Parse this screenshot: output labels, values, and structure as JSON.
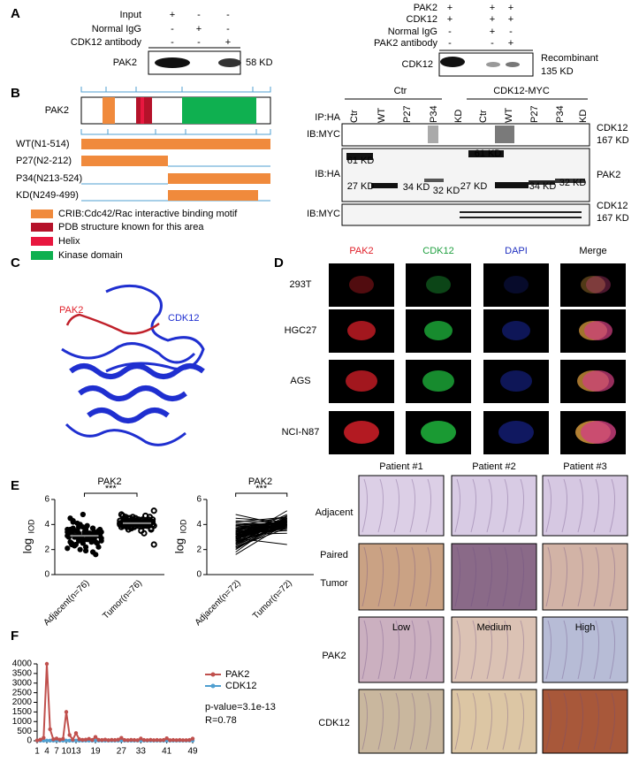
{
  "panels": {
    "a": {
      "label": "A",
      "left": {
        "conditions": [
          {
            "name": "Input",
            "marks": [
              "+",
              "-",
              "-"
            ]
          },
          {
            "name": "Normal IgG",
            "marks": [
              "-",
              "+",
              "-"
            ]
          },
          {
            "name": "CDK12 antibody",
            "marks": [
              "-",
              "-",
              "+"
            ]
          }
        ],
        "blot": "PAK2",
        "size": "58 KD"
      },
      "right": {
        "conditions": [
          {
            "name": "PAK2",
            "marks": [
              "+",
              "+",
              "+"
            ]
          },
          {
            "name": "CDK12",
            "marks": [
              "+",
              "+",
              "+"
            ]
          },
          {
            "name": "Normal IgG",
            "marks": [
              "-",
              "+",
              "-"
            ]
          },
          {
            "name": "PAK2 antibody",
            "marks": [
              "-",
              "-",
              "+"
            ]
          }
        ],
        "blot": "CDK12",
        "note": [
          "Recombinant",
          "135 KD"
        ]
      }
    },
    "b": {
      "label": "B",
      "protein": "PAK2",
      "constructs": [
        "WT(N1-514)",
        "P27(N2-212)",
        "P34(N213-524)",
        "KD(N249-499)"
      ],
      "legend": [
        "CRIB:Cdc42/Rac interactive binding motif",
        "PDB structure known for this area",
        "Helix",
        "Kinase domain"
      ],
      "blot": {
        "groups": [
          "Ctr",
          "CDK12-MYC"
        ],
        "lanes": [
          "Ctr",
          "WT",
          "P27",
          "P34",
          "KD",
          "Ctr",
          "WT",
          "P27",
          "P34",
          "KD"
        ],
        "rows": [
          "IP:HA",
          "IB:MYC",
          "IB:HA",
          "IB:MYC"
        ],
        "right_labels": [
          [
            "CDK12",
            "167 KD"
          ],
          [
            "PAK2"
          ],
          [
            "CDK12",
            "167 KD"
          ]
        ],
        "bands": [
          "61 KD",
          "27 KD",
          "34 KD",
          "32 KD",
          "61 KD",
          "27 KD",
          "34 KD",
          "32 KD"
        ]
      }
    },
    "c": {
      "label": "C",
      "labels": [
        "PAK2",
        "CDK12"
      ]
    },
    "d": {
      "label": "D",
      "channels": [
        "PAK2",
        "CDK12",
        "DAPI",
        "Merge"
      ],
      "cells": [
        "293T",
        "HGC27",
        "AGS",
        "NCI-N87"
      ]
    },
    "e": {
      "label": "E",
      "ihc": {
        "patients": [
          "Patient #1",
          "Patient #2",
          "Patient #3"
        ],
        "rows": [
          [
            "Adjacent"
          ],
          [
            "Paired",
            "Tumor"
          ],
          [
            "PAK2"
          ],
          [
            "CDK12"
          ]
        ],
        "levels": [
          "Low",
          "Medium",
          "High"
        ]
      }
    },
    "f": {
      "label": "F"
    }
  },
  "chart_data": [
    {
      "type": "scatter",
      "title": "PAK2",
      "significance": "***",
      "ylabel": "log",
      "ylabel_sub": "IOD",
      "color": "#000000",
      "categories": [
        "Adjacent(n=76)",
        "Tumor(n=76)"
      ],
      "ylim": [
        0,
        6
      ],
      "yticks": [
        0,
        2,
        4,
        6
      ],
      "groups": [
        {
          "mean": 3.1,
          "values": [
            3.1,
            2.8,
            3.4,
            2.5,
            3.6,
            3.0,
            2.2,
            3.9,
            3.3,
            2.7,
            3.2,
            4.1,
            2.9,
            3.5,
            1.8,
            3.0,
            2.6,
            3.7,
            3.1,
            2.4,
            3.3,
            4.5,
            2.8,
            3.0,
            3.6,
            2.1,
            3.4,
            2.9,
            3.8,
            3.2,
            2.7,
            3.1,
            4.0,
            2.5,
            3.3,
            1.6,
            3.5,
            2.9,
            3.0,
            3.7,
            2.3,
            3.2,
            4.3,
            2.8,
            3.4,
            3.1,
            2.6,
            3.9,
            3.0,
            2.2,
            3.6,
            3.3,
            2.7,
            4.8,
            3.1,
            2.9,
            3.5,
            2.0,
            3.2,
            3.8,
            2.6,
            3.0,
            3.4,
            2.4,
            3.7,
            3.1,
            2.8,
            4.2,
            3.3,
            2.5,
            3.0,
            3.6,
            2.9,
            3.2,
            1.9,
            3.4
          ]
        },
        {
          "mean": 4.1,
          "values": [
            4.1,
            4.3,
            3.9,
            4.5,
            4.0,
            4.2,
            3.7,
            4.6,
            4.1,
            3.8,
            4.4,
            4.0,
            4.2,
            3.6,
            4.7,
            4.1,
            3.9,
            4.3,
            4.0,
            4.5,
            3.5,
            4.2,
            4.1,
            4.8,
            3.9,
            4.0,
            4.3,
            2.4,
            4.1,
            4.4,
            3.8,
            4.2,
            4.0,
            4.6,
            3.7,
            4.1,
            4.3,
            3.9,
            4.5,
            4.0,
            4.2,
            3.3,
            4.1,
            4.4,
            3.9,
            4.0,
            4.7,
            4.2,
            3.8,
            4.1,
            4.3,
            4.0,
            5.1,
            3.9,
            4.2,
            4.1,
            3.6,
            4.4,
            4.0,
            4.2,
            3.9,
            4.5,
            4.1,
            4.0,
            4.3,
            3.8,
            4.2,
            4.6,
            4.0,
            4.1,
            4.3,
            3.9,
            4.2,
            4.0,
            4.4,
            4.1
          ]
        }
      ]
    },
    {
      "type": "paired",
      "title": "PAK2",
      "significance": "***",
      "ylabel": "log",
      "ylabel_sub": "IOD",
      "color": "#000000",
      "categories": [
        "Adjacent(n=72)",
        "Tumor(n=72)"
      ],
      "ylim": [
        0,
        6
      ],
      "yticks": [
        0,
        2,
        4,
        6
      ],
      "groups": [
        {
          "values": [
            3.1,
            2.8,
            3.4,
            2.5,
            3.6,
            3.0,
            2.2,
            3.9,
            3.3,
            2.7,
            3.2,
            4.1,
            2.9,
            3.5,
            1.8,
            3.0,
            2.6,
            3.7,
            3.1,
            2.4,
            3.3,
            4.5,
            2.8,
            3.0,
            3.6,
            2.1,
            3.4,
            2.9,
            3.8,
            3.2,
            2.7,
            3.1,
            4.0,
            2.5,
            3.3,
            1.6,
            3.5,
            2.9,
            3.0,
            3.7,
            2.3,
            3.2,
            4.3,
            2.8,
            3.4,
            3.1,
            2.6,
            3.9,
            3.0,
            2.2,
            3.6,
            3.3,
            2.7,
            4.8,
            3.1,
            2.9,
            3.5,
            2.0,
            3.2,
            3.8,
            2.6,
            3.0,
            3.4,
            2.4,
            3.7,
            3.1,
            2.8,
            4.2,
            3.3,
            2.5,
            3.0,
            3.6
          ]
        },
        {
          "values": [
            4.1,
            4.3,
            3.9,
            4.5,
            4.0,
            4.2,
            3.7,
            4.6,
            4.1,
            3.8,
            4.4,
            4.0,
            4.2,
            3.6,
            4.7,
            4.1,
            3.9,
            4.3,
            4.0,
            4.5,
            3.5,
            4.2,
            4.1,
            4.8,
            3.9,
            4.0,
            4.3,
            2.4,
            4.1,
            4.4,
            3.8,
            4.2,
            4.0,
            4.6,
            3.7,
            4.1,
            4.3,
            3.9,
            4.5,
            4.0,
            4.2,
            3.3,
            4.1,
            4.4,
            3.9,
            4.0,
            4.7,
            4.2,
            3.8,
            4.1,
            4.3,
            4.0,
            5.1,
            3.9,
            4.2,
            4.1,
            3.6,
            4.4,
            4.0,
            4.2,
            3.9,
            4.5,
            4.1,
            4.0,
            4.3,
            3.8,
            4.2,
            4.6,
            4.0,
            4.1,
            4.3,
            3.9
          ]
        }
      ]
    },
    {
      "type": "line",
      "legend": "right",
      "x": [
        1,
        2,
        3,
        4,
        5,
        6,
        7,
        8,
        9,
        10,
        11,
        12,
        13,
        14,
        15,
        16,
        17,
        18,
        19,
        20,
        21,
        22,
        23,
        24,
        25,
        26,
        27,
        28,
        29,
        30,
        31,
        32,
        33,
        34,
        35,
        36,
        37,
        38,
        39,
        40,
        41,
        42,
        43,
        44,
        45,
        46,
        47,
        48,
        49
      ],
      "xlim": [
        1,
        49
      ],
      "xticks": [
        1,
        4,
        7,
        10,
        13,
        19,
        27,
        33,
        41,
        49
      ],
      "ylim": [
        0,
        4000
      ],
      "yticks": [
        0,
        500,
        1000,
        1500,
        2000,
        2500,
        3000,
        3500,
        4000
      ],
      "annotations": [
        "p-value=3.1e-13",
        "R=0.78"
      ],
      "series": [
        {
          "name": "PAK2",
          "color": "#c0504d",
          "values": [
            20,
            60,
            150,
            4000,
            600,
            80,
            120,
            60,
            100,
            1500,
            300,
            60,
            400,
            80,
            50,
            60,
            100,
            40,
            200,
            50,
            40,
            60,
            30,
            50,
            40,
            60,
            150,
            40,
            30,
            50,
            40,
            30,
            120,
            40,
            30,
            50,
            30,
            40,
            30,
            40,
            130,
            30,
            40,
            30,
            40,
            30,
            30,
            40,
            110
          ]
        },
        {
          "name": "CDK12",
          "color": "#4f9fd0",
          "values": [
            10,
            10,
            10,
            10,
            10,
            10,
            10,
            10,
            10,
            10,
            10,
            10,
            10,
            10,
            10,
            10,
            10,
            10,
            10,
            10,
            10,
            10,
            10,
            10,
            10,
            10,
            10,
            10,
            10,
            10,
            10,
            10,
            10,
            10,
            10,
            10,
            10,
            10,
            10,
            10,
            10,
            10,
            10,
            10,
            10,
            10,
            10,
            10,
            10
          ]
        }
      ]
    }
  ]
}
